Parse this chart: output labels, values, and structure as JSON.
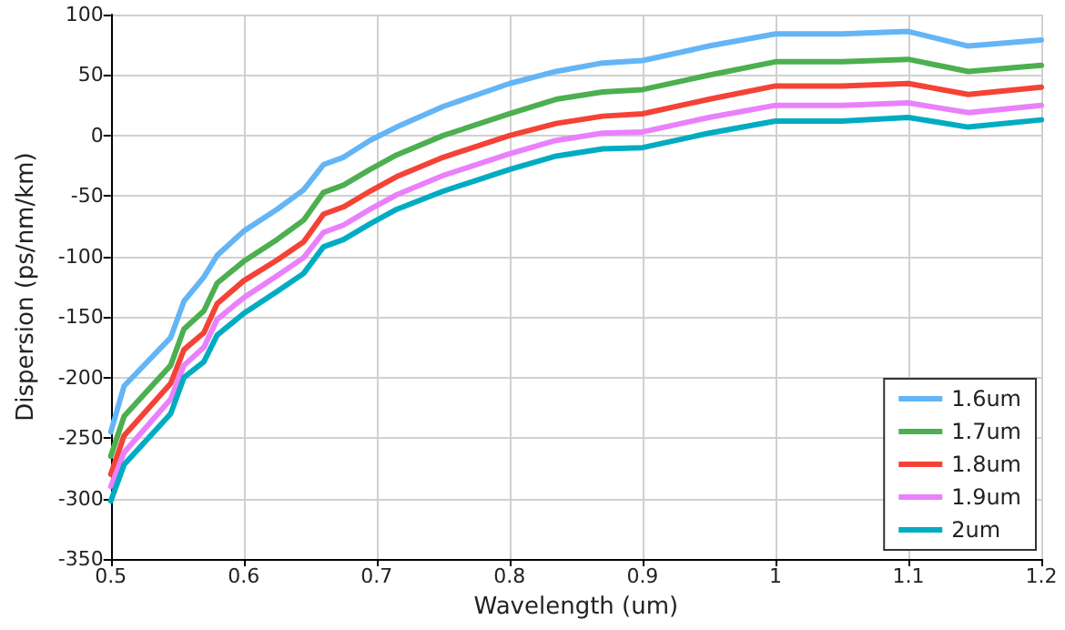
{
  "chart_data": {
    "type": "line",
    "xlabel": "Wavelength (um)",
    "ylabel": "Dispersion (ps/nm/km)",
    "x": [
      0.5,
      0.51,
      0.545,
      0.555,
      0.57,
      0.58,
      0.6,
      0.625,
      0.645,
      0.66,
      0.675,
      0.695,
      0.715,
      0.75,
      0.8,
      0.835,
      0.87,
      0.9,
      0.95,
      1.0,
      1.05,
      1.1,
      1.145,
      1.2
    ],
    "series": [
      {
        "name": "1.6um",
        "color": "#64b5f6",
        "values": [
          -245,
          -207,
          -167,
          -137,
          -117,
          -99,
          -79,
          -61,
          -45,
          -24,
          -18,
          -4,
          7,
          24,
          43,
          53,
          60,
          62,
          74,
          84,
          84,
          86,
          74,
          79
        ]
      },
      {
        "name": "1.7um",
        "color": "#4caf50",
        "values": [
          -265,
          -232,
          -190,
          -160,
          -145,
          -122,
          -104,
          -86,
          -70,
          -47,
          -41,
          -28,
          -16,
          0,
          18,
          30,
          36,
          38,
          50,
          61,
          61,
          63,
          53,
          58
        ]
      },
      {
        "name": "1.8um",
        "color": "#f44336",
        "values": [
          -280,
          -248,
          -205,
          -177,
          -163,
          -139,
          -120,
          -103,
          -88,
          -65,
          -59,
          -46,
          -34,
          -18,
          0,
          10,
          16,
          18,
          30,
          41,
          41,
          43,
          34,
          40
        ]
      },
      {
        "name": "1.9um",
        "color": "#ea80fc",
        "values": [
          -290,
          -262,
          -218,
          -190,
          -175,
          -152,
          -134,
          -116,
          -101,
          -80,
          -74,
          -61,
          -49,
          -33,
          -15,
          -4,
          2,
          3,
          15,
          25,
          25,
          27,
          19,
          25
        ]
      },
      {
        "name": "2um",
        "color": "#00acc1",
        "values": [
          -302,
          -272,
          -230,
          -200,
          -187,
          -165,
          -147,
          -129,
          -114,
          -92,
          -86,
          -73,
          -61,
          -46,
          -28,
          -17,
          -11,
          -10,
          2,
          12,
          12,
          15,
          7,
          13
        ]
      }
    ],
    "xlim": [
      0.5,
      1.2
    ],
    "xticks": [
      0.5,
      0.6,
      0.7,
      0.8,
      0.9,
      1,
      1.1,
      1.2
    ],
    "ylim": [
      -350,
      100
    ],
    "yticks": [
      -350,
      -300,
      -250,
      -200,
      -150,
      -100,
      -50,
      0,
      50,
      100
    ],
    "grid": true,
    "legend": "bottom right",
    "marker": "none",
    "line_style": "solid"
  }
}
